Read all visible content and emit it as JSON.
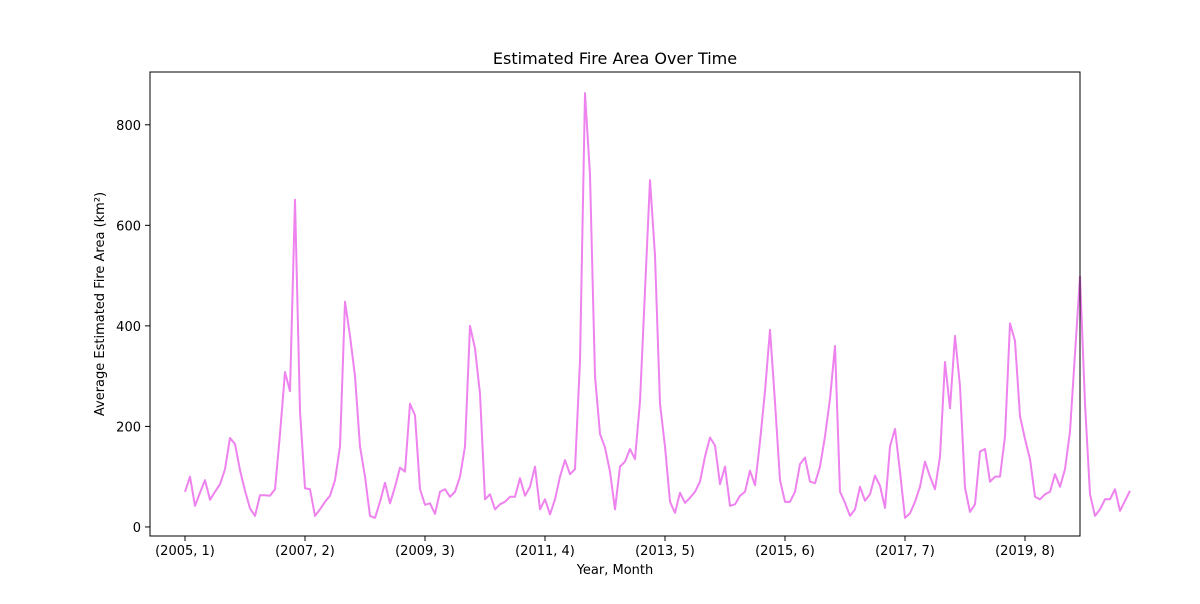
{
  "chart_data": {
    "type": "line",
    "title": "Estimated Fire Area Over Time",
    "xlabel": "Year, Month",
    "ylabel": "Average Estimated Fire Area (km²)",
    "line_color": "#ee82ee",
    "grid": false,
    "legend": "none",
    "ylim": [
      -18,
      905
    ],
    "xlim": [
      -7,
      179
    ],
    "y_ticks": [
      0,
      200,
      400,
      600,
      800
    ],
    "x_ticks": [
      {
        "index": 0,
        "label": "(2005, 1)"
      },
      {
        "index": 24,
        "label": "(2007, 2)"
      },
      {
        "index": 48,
        "label": "(2009, 3)"
      },
      {
        "index": 72,
        "label": "(2011, 4)"
      },
      {
        "index": 96,
        "label": "(2013, 5)"
      },
      {
        "index": 120,
        "label": "(2015, 6)"
      },
      {
        "index": 144,
        "label": "(2017, 7)"
      },
      {
        "index": 168,
        "label": "(2019, 8)"
      }
    ],
    "series": [
      {
        "values": [
          70,
          100,
          42,
          68,
          93,
          54,
          70,
          85,
          115,
          177,
          165,
          113,
          72,
          37,
          22,
          63,
          63,
          62,
          75,
          185,
          308,
          270,
          651,
          230,
          77,
          75,
          22,
          35,
          50,
          62,
          93,
          160,
          448,
          380,
          300,
          160,
          100,
          22,
          18,
          50,
          88,
          47,
          80,
          118,
          110,
          245,
          222,
          75,
          44,
          47,
          26,
          70,
          75,
          60,
          70,
          100,
          160,
          400,
          355,
          265,
          55,
          65,
          35,
          45,
          50,
          60,
          60,
          97,
          62,
          80,
          120,
          35,
          55,
          25,
          55,
          100,
          133,
          105,
          115,
          330,
          863,
          700,
          300,
          185,
          158,
          110,
          35,
          120,
          130,
          155,
          135,
          250,
          470,
          690,
          540,
          245,
          160,
          50,
          28,
          68,
          48,
          58,
          70,
          90,
          140,
          178,
          162,
          85,
          120,
          42,
          45,
          62,
          70,
          112,
          83,
          170,
          270,
          392,
          248,
          93,
          50,
          50,
          70,
          125,
          138,
          90,
          87,
          120,
          180,
          255,
          360,
          70,
          48,
          22,
          35,
          80,
          52,
          65,
          102,
          82,
          38,
          160,
          195,
          110,
          18,
          27,
          50,
          80,
          130,
          100,
          75,
          140,
          328,
          236,
          380,
          280,
          78,
          30,
          45,
          150,
          155,
          90,
          100,
          100,
          180,
          405,
          370,
          220,
          175,
          135,
          60,
          55,
          65,
          70,
          105,
          80,
          115,
          190,
          345,
          498,
          245,
          65,
          22,
          35,
          55,
          55,
          75,
          32,
          52,
          72
        ]
      }
    ]
  }
}
